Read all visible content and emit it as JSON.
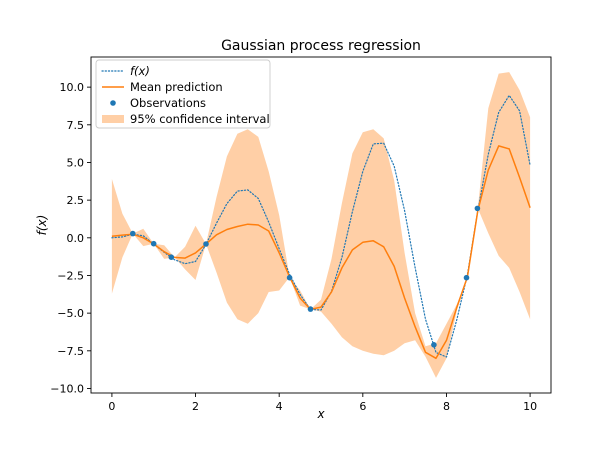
{
  "chart_data": {
    "type": "line",
    "title": "Gaussian process regression",
    "xlabel": "x",
    "ylabel": "f(x)",
    "xlim": [
      -0.5,
      10.5
    ],
    "ylim": [
      -10.3,
      12.0
    ],
    "xticks": [
      0,
      2,
      4,
      6,
      8,
      10
    ],
    "yticks": [
      -10.0,
      -7.5,
      -5.0,
      -2.5,
      0.0,
      2.5,
      5.0,
      7.5,
      10.0
    ],
    "xtick_labels": [
      "0",
      "2",
      "4",
      "6",
      "8",
      "10"
    ],
    "ytick_labels": [
      "−10.0",
      "−7.5",
      "−5.0",
      "−2.5",
      "0.0",
      "2.5",
      "5.0",
      "7.5",
      "10.0"
    ],
    "grid": false,
    "legend_position": "top-left",
    "series": [
      {
        "name": "f(x)",
        "kind": "line",
        "style": "dotted",
        "color": "#1f77b4",
        "x": [
          0,
          0.25,
          0.5,
          0.75,
          1.0,
          1.25,
          1.5,
          1.75,
          2.0,
          2.25,
          2.5,
          2.75,
          3.0,
          3.25,
          3.5,
          3.75,
          4.0,
          4.25,
          4.5,
          4.75,
          5.0,
          5.25,
          5.5,
          5.75,
          6.0,
          6.25,
          6.5,
          6.75,
          7.0,
          7.25,
          7.5,
          7.75,
          8.0,
          8.25,
          8.5,
          8.75,
          9.0,
          9.25,
          9.5,
          9.75,
          10.0
        ],
        "y": [
          0.0,
          0.06,
          0.24,
          0.13,
          -0.41,
          -0.96,
          -1.46,
          -1.72,
          -1.57,
          -0.44,
          0.97,
          2.27,
          3.1,
          3.18,
          2.61,
          1.04,
          -0.73,
          -2.43,
          -3.76,
          -4.76,
          -4.79,
          -3.56,
          -1.31,
          1.73,
          4.41,
          6.23,
          6.28,
          4.75,
          1.8,
          -1.97,
          -5.4,
          -7.61,
          -7.91,
          -5.41,
          -2.45,
          1.8,
          5.55,
          8.32,
          9.45,
          8.42,
          4.81
        ]
      },
      {
        "name": "Mean prediction",
        "kind": "line",
        "style": "solid",
        "color": "#ff7f0e",
        "x": [
          0,
          0.25,
          0.5,
          0.75,
          1.0,
          1.25,
          1.5,
          1.75,
          2.0,
          2.25,
          2.5,
          2.75,
          3.0,
          3.25,
          3.5,
          3.75,
          4.0,
          4.25,
          4.5,
          4.75,
          5.0,
          5.25,
          5.5,
          5.75,
          6.0,
          6.25,
          6.5,
          6.75,
          7.0,
          7.25,
          7.5,
          7.75,
          8.0,
          8.25,
          8.5,
          8.75,
          9.0,
          9.25,
          9.5,
          9.75,
          10.0
        ],
        "y": [
          0.1,
          0.18,
          0.24,
          0.0,
          -0.41,
          -0.92,
          -1.3,
          -1.35,
          -1.0,
          -0.41,
          0.2,
          0.55,
          0.75,
          0.9,
          0.85,
          0.45,
          -1.0,
          -2.6,
          -4.0,
          -4.75,
          -4.6,
          -3.6,
          -2.0,
          -0.8,
          -0.3,
          -0.2,
          -0.6,
          -1.9,
          -4.0,
          -5.9,
          -7.6,
          -8.0,
          -6.8,
          -4.6,
          -2.6,
          1.8,
          4.5,
          6.1,
          5.9,
          4.0,
          2.0
        ]
      },
      {
        "name": "Observations",
        "kind": "scatter",
        "color": "#1f77b4",
        "x": [
          0.5,
          1.0,
          1.42,
          2.25,
          4.25,
          4.75,
          7.7,
          8.48,
          8.74
        ],
        "y": [
          0.28,
          -0.39,
          -1.29,
          -0.41,
          -2.65,
          -4.73,
          -7.1,
          -2.65,
          1.95
        ]
      },
      {
        "name": "95% confidence interval",
        "kind": "band",
        "color": "#ffcfa6",
        "x": [
          0,
          0.25,
          0.5,
          0.75,
          1.0,
          1.25,
          1.5,
          1.75,
          2.0,
          2.25,
          2.5,
          2.75,
          3.0,
          3.25,
          3.5,
          3.75,
          4.0,
          4.25,
          4.5,
          4.75,
          5.0,
          5.25,
          5.5,
          5.75,
          6.0,
          6.25,
          6.5,
          6.75,
          7.0,
          7.25,
          7.5,
          7.75,
          8.0,
          8.25,
          8.5,
          8.75,
          9.0,
          9.25,
          9.5,
          9.75,
          10.0
        ],
        "lower": [
          -3.7,
          -1.3,
          0.28,
          -0.55,
          -0.39,
          -1.4,
          -1.3,
          -2.1,
          -2.8,
          -0.41,
          -2.3,
          -4.3,
          -5.4,
          -5.7,
          -5.0,
          -3.6,
          -3.5,
          -2.6,
          -4.5,
          -4.75,
          -4.9,
          -5.7,
          -6.6,
          -7.2,
          -7.5,
          -7.7,
          -7.8,
          -7.5,
          -7.0,
          -6.8,
          -7.9,
          -9.3,
          -8.0,
          -4.8,
          -2.65,
          1.95,
          0.3,
          -1.2,
          -2.0,
          -3.6,
          -5.4
        ],
        "upper": [
          3.9,
          1.6,
          0.28,
          0.6,
          -0.39,
          -0.5,
          -1.3,
          -0.6,
          0.8,
          -0.41,
          2.7,
          5.4,
          6.9,
          7.2,
          6.7,
          4.4,
          1.5,
          -2.6,
          -3.5,
          -4.75,
          -4.1,
          -1.4,
          2.3,
          5.6,
          7.0,
          7.2,
          6.6,
          3.8,
          -1.0,
          -5.0,
          -7.2,
          -7.0,
          -5.7,
          -4.4,
          -2.65,
          1.95,
          8.6,
          10.9,
          11.0,
          9.8,
          8.0
        ]
      }
    ]
  }
}
